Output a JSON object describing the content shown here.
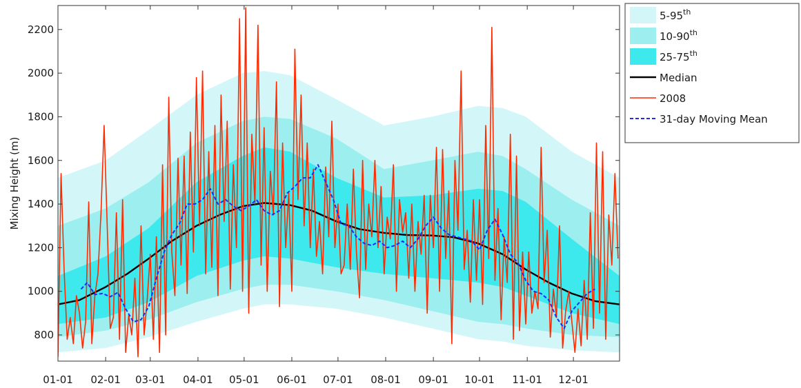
{
  "chart_data": {
    "type": "area",
    "title": "",
    "xlabel": "",
    "ylabel": "Mixing Height (m)",
    "x_ticks": [
      "01-01",
      "02-01",
      "03-01",
      "04-01",
      "05-01",
      "06-01",
      "07-01",
      "08-01",
      "09-01",
      "10-01",
      "11-01",
      "12-01"
    ],
    "y_ticks": [
      800,
      1000,
      1200,
      1400,
      1600,
      1800,
      2000,
      2200
    ],
    "xlim_day_of_year": [
      1,
      366
    ],
    "ylim": [
      680,
      2310
    ],
    "grid": false,
    "legend_position": "outside-top-right",
    "legend": [
      {
        "label": "5-95",
        "sup": "th",
        "kind": "band",
        "color": "#d3f7f9"
      },
      {
        "label": "10-90",
        "sup": "th",
        "kind": "band",
        "color": "#9defef"
      },
      {
        "label": "25-75",
        "sup": "th",
        "kind": "band",
        "color": "#3ee9ee"
      },
      {
        "label": "Median",
        "sup": "",
        "kind": "line",
        "color": "#000000"
      },
      {
        "label": "2008",
        "sup": "",
        "kind": "line",
        "color": "#ff2a00"
      },
      {
        "label": "31-day Moving Mean",
        "sup": "",
        "kind": "dashed",
        "color": "#1a2bff"
      }
    ],
    "series": [
      {
        "name": "5-95th",
        "kind": "band",
        "day": [
          1,
          32,
          60,
          91,
          121,
          135,
          152,
          182,
          213,
          244,
          274,
          290,
          305,
          335,
          366
        ],
        "low": [
          720,
          740,
          790,
          860,
          920,
          940,
          940,
          920,
          880,
          830,
          780,
          770,
          750,
          730,
          720
        ],
        "high": [
          1520,
          1600,
          1740,
          1900,
          2000,
          2010,
          1990,
          1880,
          1760,
          1800,
          1850,
          1840,
          1800,
          1640,
          1520
        ]
      },
      {
        "name": "10-90th",
        "kind": "band",
        "day": [
          1,
          32,
          60,
          91,
          121,
          135,
          152,
          182,
          213,
          244,
          274,
          290,
          305,
          335,
          366
        ],
        "low": [
          790,
          820,
          870,
          950,
          1010,
          1030,
          1030,
          1000,
          960,
          910,
          860,
          850,
          830,
          800,
          790
        ],
        "high": [
          1300,
          1380,
          1500,
          1680,
          1780,
          1800,
          1790,
          1700,
          1560,
          1600,
          1640,
          1620,
          1560,
          1420,
          1300
        ]
      },
      {
        "name": "25-75th",
        "kind": "band",
        "day": [
          1,
          32,
          60,
          91,
          121,
          135,
          152,
          182,
          213,
          244,
          274,
          290,
          305,
          335,
          366
        ],
        "low": [
          850,
          880,
          950,
          1070,
          1140,
          1160,
          1150,
          1110,
          1080,
          1060,
          1040,
          1020,
          980,
          900,
          850
        ],
        "high": [
          1070,
          1160,
          1290,
          1500,
          1620,
          1660,
          1640,
          1520,
          1430,
          1440,
          1470,
          1460,
          1410,
          1240,
          1070
        ]
      },
      {
        "name": "Median",
        "kind": "line",
        "day": [
          1,
          15,
          32,
          46,
          60,
          75,
          91,
          106,
          121,
          135,
          152,
          166,
          182,
          197,
          213,
          228,
          244,
          258,
          274,
          290,
          305,
          320,
          335,
          350,
          366
        ],
        "values": [
          940,
          960,
          1020,
          1080,
          1150,
          1230,
          1300,
          1350,
          1390,
          1405,
          1395,
          1370,
          1320,
          1285,
          1268,
          1258,
          1256,
          1248,
          1220,
          1170,
          1100,
          1040,
          990,
          955,
          940
        ]
      },
      {
        "name": "2008",
        "kind": "line",
        "day": [
          1,
          3,
          5,
          7,
          9,
          11,
          13,
          15,
          17,
          19,
          21,
          23,
          25,
          27,
          29,
          31,
          33,
          35,
          37,
          39,
          41,
          43,
          45,
          47,
          49,
          51,
          53,
          55,
          57,
          59,
          61,
          63,
          65,
          67,
          69,
          71,
          73,
          75,
          77,
          79,
          81,
          83,
          85,
          87,
          89,
          91,
          93,
          95,
          97,
          99,
          101,
          103,
          105,
          107,
          109,
          111,
          113,
          115,
          117,
          119,
          121,
          123,
          125,
          127,
          129,
          131,
          133,
          135,
          137,
          139,
          141,
          143,
          145,
          147,
          149,
          151,
          153,
          155,
          157,
          159,
          161,
          163,
          165,
          167,
          169,
          171,
          173,
          175,
          177,
          179,
          181,
          183,
          185,
          187,
          189,
          191,
          193,
          195,
          197,
          199,
          201,
          203,
          205,
          207,
          209,
          211,
          213,
          215,
          217,
          219,
          221,
          223,
          225,
          227,
          229,
          231,
          233,
          235,
          237,
          239,
          241,
          243,
          245,
          247,
          249,
          251,
          253,
          255,
          257,
          259,
          261,
          263,
          265,
          267,
          269,
          271,
          273,
          275,
          277,
          279,
          281,
          283,
          285,
          287,
          289,
          291,
          293,
          295,
          297,
          299,
          301,
          303,
          305,
          307,
          309,
          311,
          313,
          315,
          317,
          319,
          321,
          323,
          325,
          327,
          329,
          331,
          333,
          335,
          337,
          339,
          341,
          343,
          345,
          347,
          349,
          351,
          353,
          355,
          357,
          359,
          361,
          363,
          365
        ],
        "values": [
          700,
          1540,
          1100,
          780,
          880,
          760,
          980,
          900,
          740,
          860,
          1410,
          760,
          980,
          1080,
          1360,
          1760,
          1300,
          830,
          880,
          1360,
          780,
          1420,
          720,
          890,
          800,
          1060,
          700,
          1300,
          800,
          960,
          1170,
          780,
          1250,
          720,
          1580,
          800,
          1890,
          1180,
          980,
          1610,
          1120,
          1620,
          990,
          1730,
          1180,
          1980,
          1300,
          2010,
          1080,
          1640,
          1110,
          1760,
          980,
          1900,
          1320,
          1780,
          1010,
          1580,
          1200,
          2250,
          1000,
          2300,
          900,
          1720,
          1400,
          2220,
          1120,
          1750,
          1000,
          1550,
          1350,
          1960,
          930,
          1680,
          1200,
          1450,
          1000,
          2110,
          1420,
          1900,
          1300,
          1680,
          1200,
          1560,
          1160,
          1320,
          1080,
          1570,
          1250,
          1780,
          1200,
          1400,
          1080,
          1120,
          1400,
          1100,
          1560,
          1180,
          970,
          1600,
          1100,
          1400,
          1250,
          1600,
          1200,
          1480,
          1080,
          1340,
          1240,
          1580,
          1000,
          1420,
          1270,
          1360,
          1060,
          1400,
          1000,
          1320,
          1170,
          1440,
          900,
          1440,
          1200,
          1660,
          1000,
          1650,
          1150,
          1460,
          760,
          1600,
          1280,
          2010,
          1100,
          1280,
          950,
          1420,
          1050,
          1420,
          940,
          1760,
          1150,
          2210,
          1050,
          1380,
          870,
          1250,
          1040,
          1720,
          780,
          1620,
          820,
          1180,
          850,
          1180,
          900,
          1000,
          920,
          1660,
          1040,
          1280,
          790,
          1010,
          880,
          1300,
          740,
          910,
          1000,
          860,
          720,
          920,
          750,
          1050,
          780,
          1360,
          830,
          1680,
          900,
          1640,
          780,
          1350,
          1120,
          1540,
          1150,
          1280,
          930,
          1640,
          1200,
          880,
          720
        ]
      },
      {
        "name": "31-day Moving Mean",
        "kind": "dashed",
        "day": [
          16,
          20,
          25,
          30,
          35,
          40,
          45,
          50,
          55,
          60,
          65,
          70,
          75,
          80,
          85,
          90,
          95,
          100,
          105,
          110,
          115,
          120,
          125,
          130,
          135,
          140,
          145,
          150,
          155,
          160,
          165,
          170,
          175,
          180,
          185,
          190,
          195,
          200,
          205,
          210,
          215,
          220,
          225,
          230,
          235,
          240,
          245,
          250,
          255,
          260,
          265,
          270,
          275,
          280,
          285,
          290,
          295,
          300,
          305,
          310,
          315,
          320,
          325,
          330,
          335,
          340,
          345,
          350
        ],
        "values": [
          1010,
          1040,
          985,
          990,
          975,
          995,
          920,
          860,
          870,
          930,
          1060,
          1180,
          1260,
          1310,
          1400,
          1400,
          1420,
          1470,
          1400,
          1420,
          1390,
          1370,
          1390,
          1420,
          1370,
          1350,
          1370,
          1450,
          1480,
          1520,
          1520,
          1580,
          1500,
          1420,
          1310,
          1300,
          1250,
          1220,
          1210,
          1230,
          1200,
          1210,
          1230,
          1200,
          1240,
          1300,
          1340,
          1290,
          1260,
          1250,
          1240,
          1230,
          1190,
          1280,
          1330,
          1260,
          1170,
          1130,
          1050,
          1000,
          990,
          960,
          880,
          830,
          910,
          950,
          990,
          1010
        ]
      }
    ]
  }
}
